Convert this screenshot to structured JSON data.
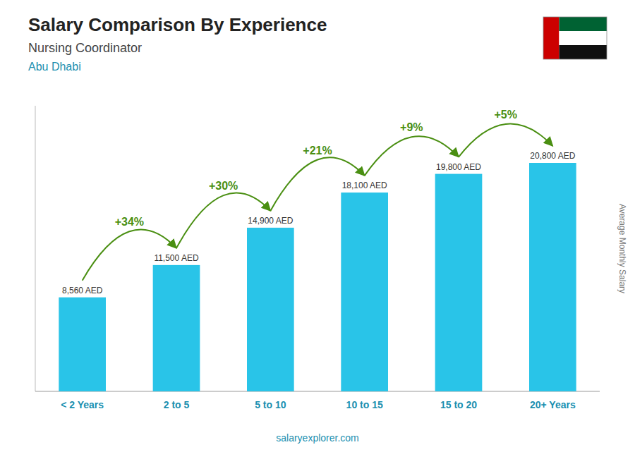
{
  "chart_data": {
    "type": "bar",
    "title": "Salary Comparison By Experience",
    "subtitle": "Nursing Coordinator",
    "location": "Abu Dhabi",
    "ylabel": "Average Monthly Salary",
    "source": "salaryexplorer.com",
    "categories": [
      "< 2 Years",
      "2 to 5",
      "5 to 10",
      "10 to 15",
      "15 to 20",
      "20+ Years"
    ],
    "values": [
      8560,
      11500,
      14900,
      18100,
      19800,
      20800
    ],
    "value_labels": [
      "8,560 AED",
      "11,500 AED",
      "14,900 AED",
      "18,100 AED",
      "19,800 AED",
      "20,800 AED"
    ],
    "data_labels": true,
    "annotations": [
      "+34%",
      "+30%",
      "+21%",
      "+9%",
      "+5%"
    ],
    "color": "#29c4e8",
    "ylim": [
      0,
      26000
    ],
    "tick_labels": "x",
    "grid": false
  }
}
